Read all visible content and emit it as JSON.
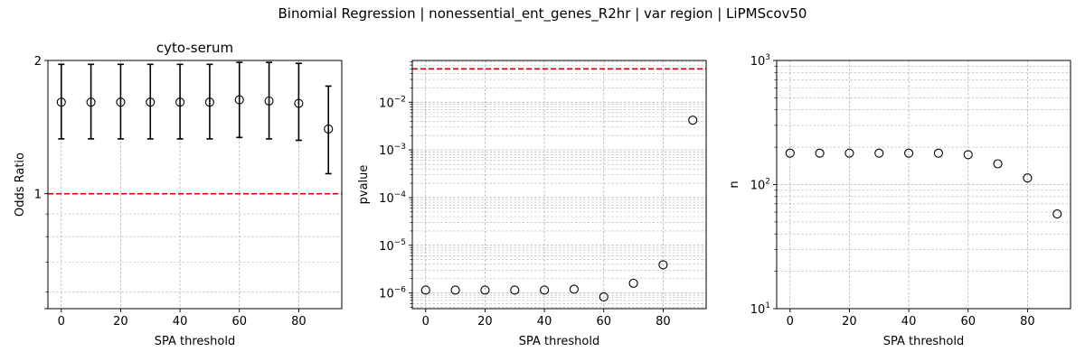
{
  "figure": {
    "suptitle": "Binomial Regression | nonessential_ent_genes_R2hr | var region | LiPMScov50"
  },
  "chart_data": [
    {
      "id": "panel1",
      "type": "errorbar",
      "title": "cyto-serum",
      "xlabel": "SPA threshold",
      "ylabel": "Odds Ratio",
      "yscale": "log",
      "xlim": [
        -4.5,
        94.5
      ],
      "ylim": [
        0.55,
        2.0
      ],
      "xticks": [
        0,
        20,
        40,
        60,
        80
      ],
      "yticks": [
        {
          "value": 1,
          "label": "1"
        },
        {
          "value": 2,
          "label": "2"
        }
      ],
      "x": [
        0,
        10,
        20,
        30,
        40,
        50,
        60,
        70,
        80,
        90
      ],
      "y": [
        1.61,
        1.61,
        1.61,
        1.61,
        1.61,
        1.61,
        1.63,
        1.62,
        1.6,
        1.4
      ],
      "yerr_low": [
        1.33,
        1.33,
        1.33,
        1.33,
        1.33,
        1.33,
        1.34,
        1.33,
        1.32,
        1.11
      ],
      "yerr_high": [
        1.96,
        1.96,
        1.96,
        1.96,
        1.96,
        1.96,
        1.98,
        1.98,
        1.97,
        1.75
      ],
      "reference_line": {
        "value": 1,
        "color": "#e00000",
        "style": "dashed"
      },
      "grid": true
    },
    {
      "id": "panel2",
      "type": "scatter",
      "title": "",
      "xlabel": "SPA threshold",
      "ylabel": "pvalue",
      "yscale": "log",
      "xlim": [
        -4.5,
        94.5
      ],
      "ylim": [
        4.7e-07,
        0.075
      ],
      "xticks": [
        0,
        20,
        40,
        60,
        80
      ],
      "yticks": [
        {
          "value": 1e-06,
          "base": "10",
          "exp": "−6"
        },
        {
          "value": 1e-05,
          "base": "10",
          "exp": "−5"
        },
        {
          "value": 0.0001,
          "base": "10",
          "exp": "−4"
        },
        {
          "value": 0.001,
          "base": "10",
          "exp": "−3"
        },
        {
          "value": 0.01,
          "base": "10",
          "exp": "−2"
        }
      ],
      "x": [
        0,
        10,
        20,
        30,
        40,
        50,
        60,
        70,
        80,
        90
      ],
      "y": [
        1.15e-06,
        1.15e-06,
        1.15e-06,
        1.15e-06,
        1.15e-06,
        1.2e-06,
        8.3e-07,
        1.6e-06,
        3.9e-06,
        0.0042
      ],
      "reference_line": {
        "value": 0.05,
        "color": "#e00000",
        "style": "dashed"
      },
      "grid": true
    },
    {
      "id": "panel3",
      "type": "scatter",
      "title": "",
      "xlabel": "SPA threshold",
      "ylabel": "n",
      "yscale": "log",
      "xlim": [
        -4.5,
        94.5
      ],
      "ylim": [
        10,
        1000
      ],
      "xticks": [
        0,
        20,
        40,
        60,
        80
      ],
      "yticks": [
        {
          "value": 10,
          "base": "10",
          "exp": "1"
        },
        {
          "value": 100,
          "base": "10",
          "exp": "2"
        },
        {
          "value": 1000,
          "base": "10",
          "exp": "3"
        }
      ],
      "x": [
        0,
        10,
        20,
        30,
        40,
        50,
        60,
        70,
        80,
        90
      ],
      "y": [
        179,
        179,
        179,
        179,
        179,
        179,
        174,
        147,
        113,
        58
      ],
      "grid": true
    }
  ]
}
